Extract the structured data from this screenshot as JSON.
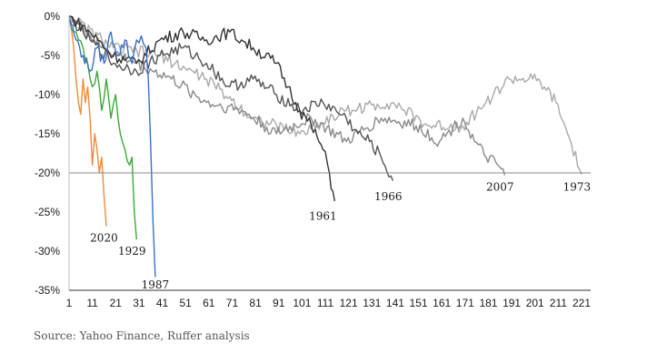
{
  "source_note": "Source: Yahoo Finance, Ruffer analysis",
  "chart_data": {
    "type": "line",
    "title": "",
    "xlabel": "",
    "ylabel": "",
    "xlim": [
      1,
      221
    ],
    "ylim": [
      -35,
      0
    ],
    "x_ticks": [
      1,
      11,
      21,
      31,
      41,
      51,
      61,
      71,
      81,
      91,
      101,
      111,
      121,
      131,
      141,
      151,
      161,
      171,
      181,
      191,
      201,
      211,
      221
    ],
    "y_ticks": [
      0,
      -5,
      -10,
      -15,
      -20,
      -25,
      -30,
      -35
    ],
    "y_tick_labels": [
      "0%",
      "-5%",
      "-10%",
      "-15%",
      "-20%",
      "-25%",
      "-30%",
      "-35%"
    ],
    "reference_line": -20,
    "grid": false,
    "series": [
      {
        "name": "2020",
        "color": "#f08a3c",
        "x": [
          1,
          2,
          3,
          4,
          5,
          6,
          7,
          8,
          9,
          10,
          11,
          12,
          13,
          14,
          15,
          16,
          17
        ],
        "values": [
          0,
          -1.5,
          -4,
          -8,
          -11,
          -12.5,
          -8,
          -11,
          -9,
          -13,
          -19,
          -15,
          -17,
          -20,
          -18,
          -23,
          -26.8
        ],
        "label_x": 16,
        "label_y": -28.3
      },
      {
        "name": "1929",
        "color": "#3aaa35",
        "x": [
          1,
          3,
          5,
          7,
          9,
          11,
          13,
          15,
          17,
          19,
          21,
          23,
          25,
          27,
          28,
          29,
          30
        ],
        "values": [
          0,
          -2,
          -3,
          -4,
          -6,
          -9,
          -7,
          -12,
          -8,
          -13,
          -10,
          -15,
          -17,
          -19,
          -18,
          -25,
          -28.5
        ],
        "label_x": 28,
        "label_y": -30
      },
      {
        "name": "1987",
        "color": "#3b6fc7",
        "x": [
          1,
          4,
          7,
          10,
          13,
          16,
          19,
          22,
          25,
          28,
          30,
          32,
          34,
          35,
          36,
          37,
          38
        ],
        "values": [
          0,
          -3,
          -5,
          -7,
          -4,
          -6,
          -2,
          -5,
          -3,
          -6,
          -3,
          -2.5,
          -4,
          -8,
          -16,
          -26,
          -33.3
        ],
        "label_x": 38,
        "label_y": -34.3
      },
      {
        "name": "1961",
        "color": "#333333",
        "x": [
          1,
          10,
          20,
          30,
          40,
          50,
          60,
          70,
          75,
          80,
          90,
          95,
          100,
          105,
          110,
          112,
          115
        ],
        "values": [
          0,
          -2,
          -5,
          -6,
          -3,
          -2,
          -3,
          -2,
          -3,
          -4,
          -6,
          -9,
          -12,
          -14,
          -17,
          -19,
          -23.6
        ],
        "label_x": 110,
        "label_y": -25.5
      },
      {
        "name": "1966",
        "color": "#555555",
        "x": [
          1,
          10,
          20,
          30,
          40,
          50,
          60,
          70,
          80,
          90,
          100,
          110,
          120,
          125,
          130,
          135,
          140
        ],
        "values": [
          0,
          -3,
          -6,
          -7,
          -5,
          -4,
          -6,
          -9,
          -8,
          -10,
          -12,
          -11,
          -13,
          -15,
          -16,
          -18,
          -21
        ],
        "label_x": 138,
        "label_y": -23
      },
      {
        "name": "2007",
        "color": "#8a8a8a",
        "x": [
          1,
          15,
          30,
          45,
          60,
          75,
          90,
          105,
          120,
          135,
          150,
          160,
          170,
          175,
          180,
          185,
          188
        ],
        "values": [
          0,
          -4,
          -6,
          -8,
          -11,
          -12,
          -15,
          -13,
          -16,
          -13,
          -14,
          -16,
          -13,
          -16,
          -18,
          -19,
          -20.3
        ],
        "label_x": 186,
        "label_y": -21.8
      },
      {
        "name": "1973",
        "color": "#aaaaaa",
        "x": [
          1,
          20,
          40,
          60,
          80,
          100,
          120,
          140,
          155,
          170,
          180,
          190,
          200,
          205,
          210,
          215,
          221
        ],
        "values": [
          0,
          -4,
          -5,
          -8,
          -13,
          -15,
          -12,
          -11,
          -14,
          -14,
          -11,
          -8,
          -8,
          -9,
          -11,
          -15,
          -20.2
        ],
        "label_x": 219,
        "label_y": -21.8
      }
    ]
  }
}
